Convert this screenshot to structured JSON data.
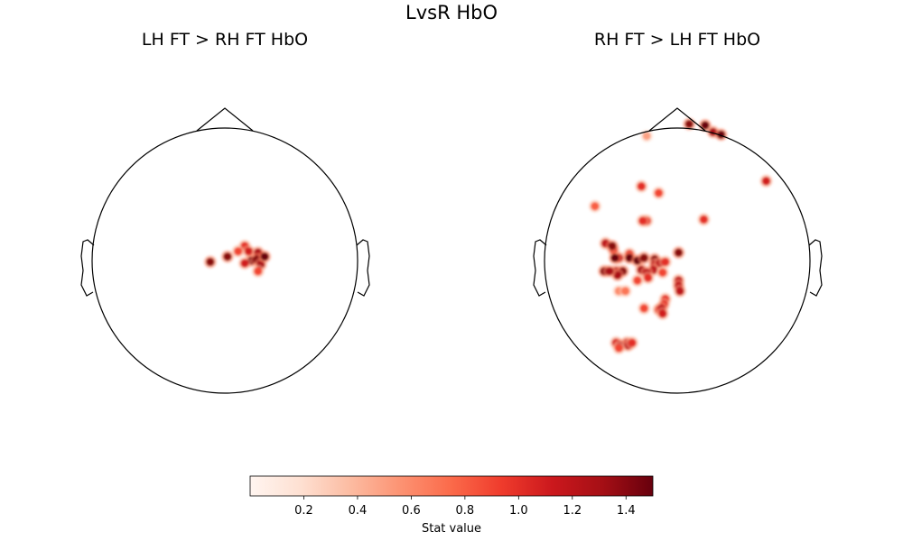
{
  "figure": {
    "suptitle": "LvsR HbO"
  },
  "chart_data": [
    {
      "type": "heatmap",
      "kind": "topomap",
      "title": "LH FT > RH FT HbO",
      "colormap": "Reds",
      "vmin": 0,
      "vmax": 1.5,
      "x_unit": "normalized head radius",
      "y_unit": "normalized head radius",
      "blobs": [
        {
          "x": -0.11,
          "y": -0.01,
          "value": 1.4
        },
        {
          "x": 0.02,
          "y": 0.03,
          "value": 1.4
        },
        {
          "x": 0.15,
          "y": 0.11,
          "value": 1.0
        },
        {
          "x": 0.1,
          "y": 0.07,
          "value": 0.9
        },
        {
          "x": 0.18,
          "y": 0.07,
          "value": 1.1
        },
        {
          "x": 0.25,
          "y": 0.06,
          "value": 1.3
        },
        {
          "x": 0.2,
          "y": 0.0,
          "value": 1.5
        },
        {
          "x": 0.24,
          "y": 0.01,
          "value": 1.4
        },
        {
          "x": 0.27,
          "y": -0.03,
          "value": 1.3
        },
        {
          "x": 0.3,
          "y": 0.03,
          "value": 1.5
        },
        {
          "x": 0.15,
          "y": -0.02,
          "value": 1.1
        },
        {
          "x": 0.25,
          "y": -0.08,
          "value": 0.9
        }
      ]
    },
    {
      "type": "heatmap",
      "kind": "topomap",
      "title": "RH FT > LH FT HbO",
      "colormap": "Reds",
      "vmin": 0,
      "vmax": 1.5,
      "x_unit": "normalized head radius",
      "y_unit": "normalized head radius",
      "blobs": [
        {
          "x": -0.62,
          "y": 0.41,
          "value": 0.8
        },
        {
          "x": -0.27,
          "y": 0.56,
          "value": 1.0
        },
        {
          "x": -0.14,
          "y": 0.51,
          "value": 0.9
        },
        {
          "x": 0.09,
          "y": 1.03,
          "value": 1.4
        },
        {
          "x": 0.21,
          "y": 1.02,
          "value": 1.5
        },
        {
          "x": 0.27,
          "y": 0.97,
          "value": 1.3
        },
        {
          "x": -0.23,
          "y": 0.94,
          "value": 0.5
        },
        {
          "x": 0.33,
          "y": 0.95,
          "value": 1.5
        },
        {
          "x": 0.67,
          "y": 0.6,
          "value": 1.1
        },
        {
          "x": -0.23,
          "y": 0.3,
          "value": 1.0
        },
        {
          "x": -0.26,
          "y": 0.3,
          "value": 1.0
        },
        {
          "x": 0.2,
          "y": 0.31,
          "value": 1.0
        },
        {
          "x": -0.48,
          "y": 0.08,
          "value": 1.0
        },
        {
          "x": -0.54,
          "y": 0.13,
          "value": 1.2
        },
        {
          "x": -0.36,
          "y": 0.05,
          "value": 1.0
        },
        {
          "x": -0.44,
          "y": 0.02,
          "value": 1.2
        },
        {
          "x": -0.49,
          "y": 0.11,
          "value": 1.4
        },
        {
          "x": -0.47,
          "y": 0.02,
          "value": 1.5
        },
        {
          "x": -0.36,
          "y": 0.02,
          "value": 1.5
        },
        {
          "x": -0.3,
          "y": 0.0,
          "value": 1.5
        },
        {
          "x": -0.25,
          "y": 0.02,
          "value": 1.4
        },
        {
          "x": -0.17,
          "y": 0.01,
          "value": 1.4
        },
        {
          "x": -0.17,
          "y": -0.03,
          "value": 1.2
        },
        {
          "x": -0.13,
          "y": -0.02,
          "value": 1.2
        },
        {
          "x": -0.09,
          "y": -0.01,
          "value": 1.0
        },
        {
          "x": -0.18,
          "y": -0.07,
          "value": 1.2
        },
        {
          "x": -0.27,
          "y": -0.07,
          "value": 1.3
        },
        {
          "x": -0.23,
          "y": -0.09,
          "value": 1.2
        },
        {
          "x": -0.11,
          "y": -0.09,
          "value": 0.9
        },
        {
          "x": -0.55,
          "y": -0.08,
          "value": 1.4
        },
        {
          "x": -0.46,
          "y": -0.08,
          "value": 1.3
        },
        {
          "x": -0.41,
          "y": -0.08,
          "value": 1.4
        },
        {
          "x": -0.45,
          "y": -0.11,
          "value": 1.3
        },
        {
          "x": -0.51,
          "y": -0.08,
          "value": 1.3
        },
        {
          "x": -0.22,
          "y": -0.13,
          "value": 1.0
        },
        {
          "x": -0.3,
          "y": -0.15,
          "value": 0.9
        },
        {
          "x": -0.44,
          "y": -0.23,
          "value": 0.6
        },
        {
          "x": -0.39,
          "y": -0.23,
          "value": 0.7
        },
        {
          "x": -0.25,
          "y": -0.36,
          "value": 0.9
        },
        {
          "x": -0.14,
          "y": -0.37,
          "value": 1.0
        },
        {
          "x": 0.01,
          "y": 0.06,
          "value": 1.4
        },
        {
          "x": 0.01,
          "y": -0.15,
          "value": 1.2
        },
        {
          "x": 0.01,
          "y": -0.19,
          "value": 1.2
        },
        {
          "x": 0.02,
          "y": -0.23,
          "value": 1.2
        },
        {
          "x": -0.09,
          "y": -0.29,
          "value": 1.0
        },
        {
          "x": -0.1,
          "y": -0.33,
          "value": 1.0
        },
        {
          "x": -0.12,
          "y": -0.36,
          "value": 1.2
        },
        {
          "x": -0.11,
          "y": -0.4,
          "value": 1.1
        },
        {
          "x": -0.46,
          "y": -0.62,
          "value": 1.1
        },
        {
          "x": -0.38,
          "y": -0.62,
          "value": 1.2
        },
        {
          "x": -0.43,
          "y": -0.64,
          "value": 1.3
        },
        {
          "x": -0.37,
          "y": -0.64,
          "value": 1.2
        },
        {
          "x": -0.34,
          "y": -0.62,
          "value": 1.0
        },
        {
          "x": -0.44,
          "y": -0.66,
          "value": 0.9
        }
      ]
    }
  ],
  "colorbar": {
    "label": "Stat value",
    "colormap": "Reds",
    "vmin": 0,
    "vmax": 1.5,
    "ticks": [
      0.2,
      0.4,
      0.6,
      0.8,
      1.0,
      1.2,
      1.4
    ],
    "tick_labels": [
      "0.2",
      "0.4",
      "0.6",
      "0.8",
      "1.0",
      "1.2",
      "1.4"
    ]
  }
}
